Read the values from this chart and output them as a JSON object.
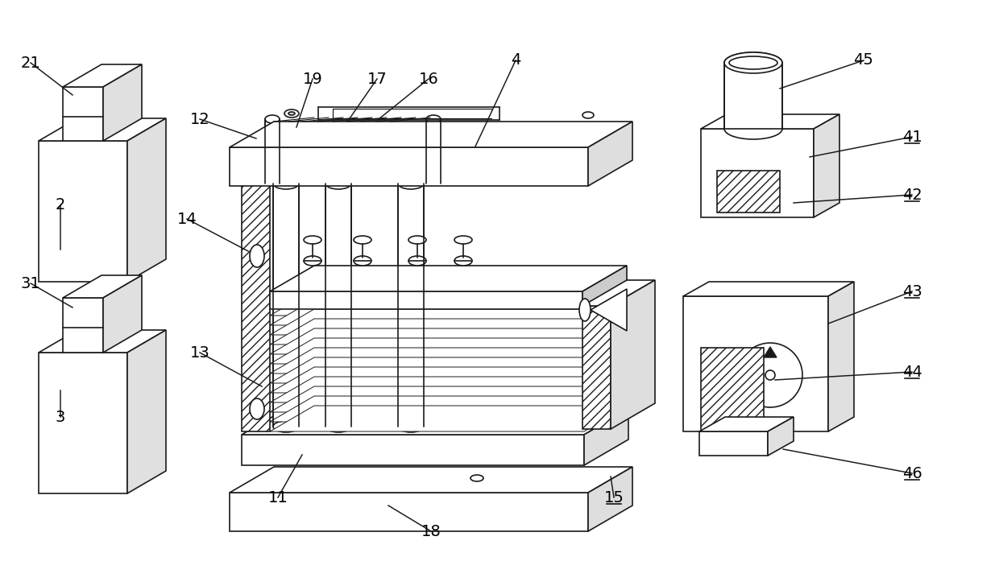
{
  "bg_color": "#ffffff",
  "line_color": "#1a1a1a",
  "figsize": [
    12.4,
    7.28
  ],
  "dpi": 100,
  "leaders": [
    [
      "21",
      38,
      78,
      90,
      118,
      false
    ],
    [
      "2",
      75,
      255,
      75,
      310,
      false
    ],
    [
      "31",
      38,
      352,
      90,
      382,
      false
    ],
    [
      "3",
      75,
      518,
      75,
      485,
      false
    ],
    [
      "4",
      640,
      75,
      590,
      182,
      false
    ],
    [
      "11",
      345,
      618,
      375,
      565,
      false
    ],
    [
      "12",
      248,
      148,
      318,
      172,
      false
    ],
    [
      "13",
      248,
      438,
      325,
      480,
      false
    ],
    [
      "14",
      232,
      272,
      308,
      312,
      false
    ],
    [
      "15",
      762,
      618,
      758,
      592,
      true
    ],
    [
      "16",
      532,
      98,
      470,
      148,
      false
    ],
    [
      "17",
      468,
      98,
      432,
      150,
      false
    ],
    [
      "18",
      535,
      660,
      482,
      628,
      false
    ],
    [
      "19",
      388,
      98,
      368,
      158,
      false
    ],
    [
      "41",
      1132,
      170,
      1005,
      195,
      true
    ],
    [
      "42",
      1132,
      242,
      985,
      252,
      true
    ],
    [
      "43",
      1132,
      362,
      1028,
      402,
      true
    ],
    [
      "44",
      1132,
      462,
      962,
      472,
      true
    ],
    [
      "45",
      1072,
      75,
      968,
      110,
      false
    ],
    [
      "46",
      1132,
      588,
      972,
      558,
      true
    ]
  ]
}
